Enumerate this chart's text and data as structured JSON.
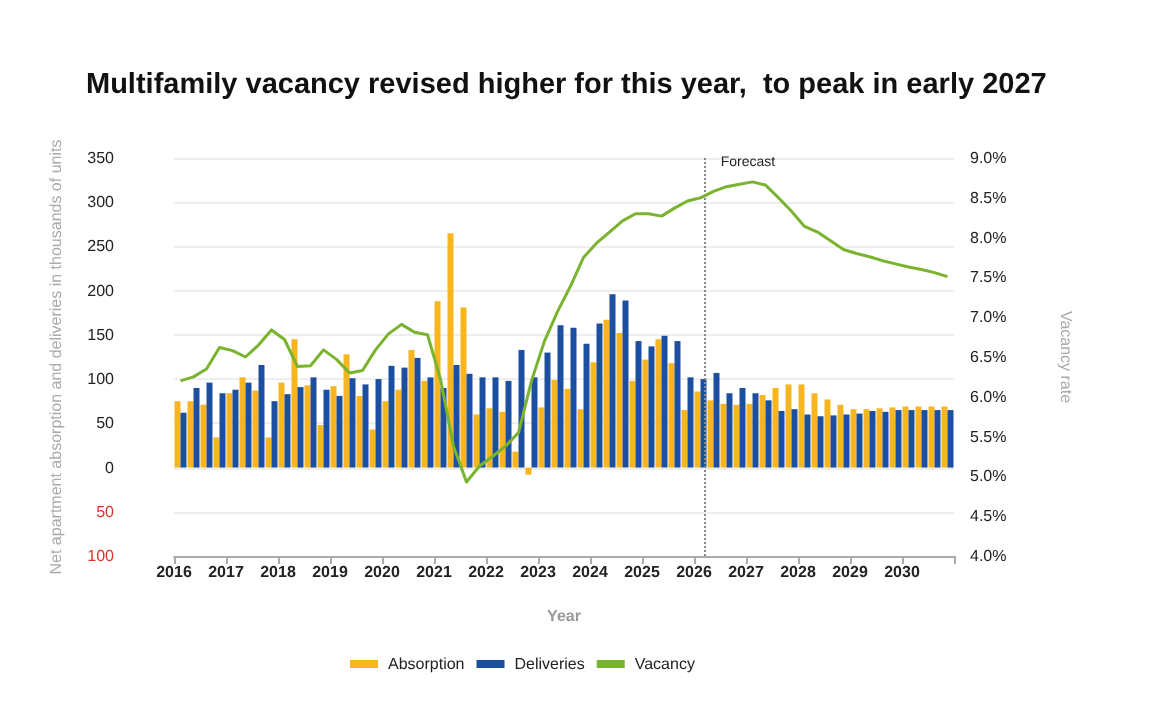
{
  "chart_data": {
    "type": "bar",
    "title": "Multifamily vacancy revised higher for this year,  to peak in early 2027",
    "xlabel": "Year",
    "ylabel": "Net apartment absorption and deliveries in thousands of units",
    "y2label": "Vacancy rate",
    "x": [
      2016.125,
      2016.375,
      2016.625,
      2016.875,
      2017.125,
      2017.375,
      2017.625,
      2017.875,
      2018.125,
      2018.375,
      2018.625,
      2018.875,
      2019.125,
      2019.375,
      2019.625,
      2019.875,
      2020.125,
      2020.375,
      2020.625,
      2020.875,
      2021.125,
      2021.375,
      2021.625,
      2021.875,
      2022.125,
      2022.375,
      2022.625,
      2022.875,
      2023.125,
      2023.375,
      2023.625,
      2023.875,
      2024.125,
      2024.375,
      2024.625,
      2024.875,
      2025.125,
      2025.375,
      2025.625,
      2025.875,
      2026.125,
      2026.375,
      2026.625,
      2026.875,
      2027.125,
      2027.375,
      2027.625,
      2027.875,
      2028.125,
      2028.375,
      2028.625,
      2028.875,
      2029.125,
      2029.375,
      2029.625,
      2029.875,
      2030.125,
      2030.375,
      2030.625,
      2030.875
    ],
    "series": [
      {
        "name": "Absorption",
        "color": "#f7b520",
        "values": [
          75,
          75,
          71,
          34,
          84,
          102,
          87,
          34,
          96,
          145,
          93,
          48,
          92,
          128,
          81,
          43,
          75,
          88,
          133,
          98,
          188,
          265,
          181,
          60,
          67,
          63,
          18,
          -8,
          68,
          99,
          89,
          66,
          119,
          167,
          152,
          98,
          122,
          145,
          118,
          65,
          86,
          76,
          72,
          71,
          72,
          82,
          90,
          94,
          94,
          84,
          77,
          71,
          66,
          66,
          67,
          68,
          69,
          69,
          69,
          69
        ]
      },
      {
        "name": "Deliveries",
        "color": "#1c4f9f",
        "values": [
          62,
          90,
          96,
          84,
          88,
          96,
          116,
          75,
          83,
          91,
          102,
          88,
          81,
          101,
          94,
          100,
          115,
          113,
          124,
          102,
          90,
          116,
          106,
          102,
          102,
          98,
          133,
          102,
          130,
          161,
          158,
          140,
          163,
          196,
          189,
          143,
          137,
          149,
          143,
          102,
          100,
          107,
          84,
          90,
          84,
          76,
          64,
          66,
          60,
          58,
          59,
          60,
          61,
          64,
          63,
          65,
          65,
          65,
          65,
          65
        ]
      },
      {
        "name": "Vacancy",
        "type": "line",
        "axis": "y2",
        "color": "#7ab32e",
        "marker": "none",
        "values": [
          6.2,
          6.25,
          6.35,
          6.62,
          6.58,
          6.5,
          6.65,
          6.84,
          6.72,
          6.38,
          6.39,
          6.59,
          6.47,
          6.3,
          6.33,
          6.59,
          6.79,
          6.91,
          6.81,
          6.78,
          6.22,
          5.38,
          4.93,
          5.13,
          5.25,
          5.38,
          5.55,
          6.2,
          6.7,
          7.07,
          7.39,
          7.75,
          7.93,
          8.07,
          8.21,
          8.3,
          8.3,
          8.27,
          8.37,
          8.46,
          8.5,
          8.58,
          8.64,
          8.67,
          8.7,
          8.66,
          8.5,
          8.33,
          8.14,
          8.07,
          7.96,
          7.85,
          7.8,
          7.76,
          7.71,
          7.67,
          7.63,
          7.6,
          7.56,
          7.51
        ]
      }
    ],
    "xlim": [
      2016,
      2031
    ],
    "xticks": [
      2016,
      2017,
      2018,
      2019,
      2020,
      2021,
      2022,
      2023,
      2024,
      2025,
      2026,
      2027,
      2028,
      2029,
      2030,
      {
        "value": 2031,
        "label": null
      }
    ],
    "ylim": [
      -100,
      350
    ],
    "yticks": [
      {
        "value": -100,
        "label": "100"
      },
      {
        "value": -50,
        "label": "50"
      },
      0,
      50,
      100,
      150,
      200,
      250,
      300,
      350
    ],
    "y2lim": [
      4,
      9
    ],
    "y2ticks": [
      {
        "value": 4,
        "label": "4.0%"
      },
      {
        "value": 4.5,
        "label": "4.5%"
      },
      {
        "value": 5,
        "label": "5.0%"
      },
      {
        "value": 5.5,
        "label": "5.5%"
      },
      {
        "value": 6,
        "label": "6.0%"
      },
      {
        "value": 6.5,
        "label": "6.5%"
      },
      {
        "value": 7,
        "label": "7.0%"
      },
      {
        "value": 7.5,
        "label": "7.5%"
      },
      {
        "value": 8,
        "label": "8.0%"
      },
      {
        "value": 8.5,
        "label": "8.5%"
      },
      {
        "value": 9,
        "label": "9.0%"
      }
    ],
    "ref_lines": [
      {
        "axis": "x",
        "value": 2026.25,
        "label": "Forecast",
        "line_style": "dotted",
        "color": "#888888"
      }
    ],
    "grid": "y",
    "legend": "bottom"
  }
}
